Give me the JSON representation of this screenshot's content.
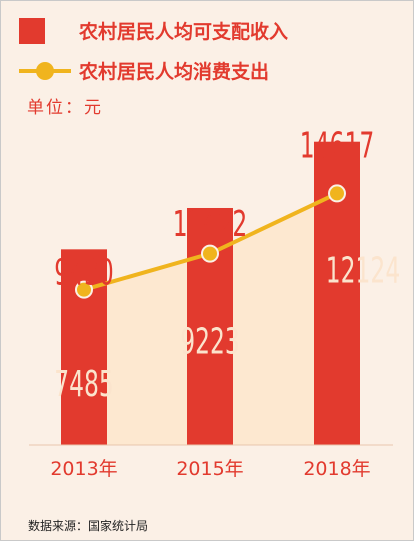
{
  "legend": {
    "income": "农村居民人均可支配收入",
    "consumption": "农村居民人均消费支出"
  },
  "unit_label": "单位：元",
  "source": "数据来源：国家统计局",
  "colors": {
    "bar": "#e23a2e",
    "line": "#f0b41e",
    "background": "#fbf0e6",
    "area": "#fde7cf"
  },
  "chart_data": {
    "type": "bar",
    "categories": [
      "2013年",
      "2015年",
      "2018年"
    ],
    "series": [
      {
        "name": "农村居民人均可支配收入",
        "type": "bar",
        "values": [
          9430,
          11422,
          14617
        ]
      },
      {
        "name": "农村居民人均消费支出",
        "type": "line",
        "values": [
          7485,
          9223,
          12124
        ]
      }
    ],
    "ylabel": "单位：元",
    "ylim": [
      0,
      16000
    ],
    "grid": false,
    "legend": "top-left"
  }
}
